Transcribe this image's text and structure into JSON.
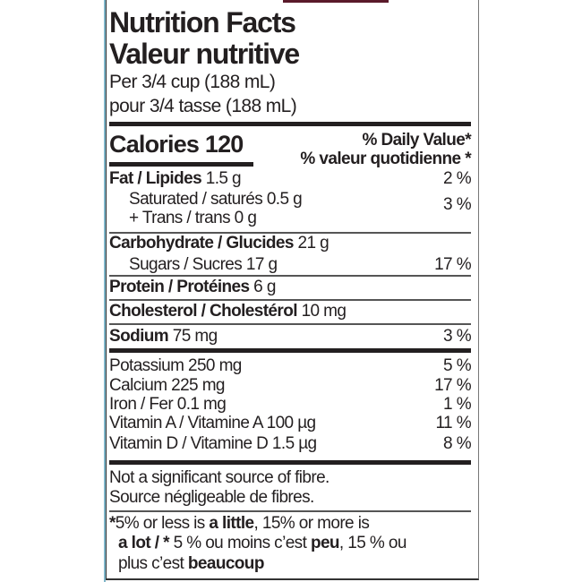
{
  "title_en": "Nutrition Facts",
  "title_fr": "Valeur nutritive",
  "serving_en": "Per 3/4 cup (188 mL)",
  "serving_fr": "pour 3/4 tasse (188 mL)",
  "calories": {
    "label": "Calories",
    "value": "120"
  },
  "dv_header_en": "% Daily Value",
  "dv_header_fr": "% valeur quotidienne",
  "asterisk": "*",
  "nutrients": [
    {
      "name": "Fat / Lipides",
      "amount": "1.5 g",
      "dv": "2 %"
    },
    {
      "name": "Saturated / saturés",
      "amount": "0.5 g",
      "dv": "3 %"
    },
    {
      "name": "+ Trans / trans",
      "amount": "0 g"
    },
    {
      "name": "Carbohydrate / Glucides",
      "amount": "21 g"
    },
    {
      "name": "Sugars / Sucres",
      "amount": "17 g",
      "dv": "17 %"
    },
    {
      "name": "Protein / Protéines",
      "amount": "6 g"
    },
    {
      "name": "Cholesterol / Cholestérol",
      "amount": "10 mg"
    },
    {
      "name": "Sodium",
      "amount": "75 mg",
      "dv": "3 %"
    }
  ],
  "micronutrients": [
    {
      "name": "Potassium",
      "amount": "250 mg",
      "dv": "5 %"
    },
    {
      "name": "Calcium",
      "amount": "225 mg",
      "dv": "17 %"
    },
    {
      "name": "Iron / Fer",
      "amount": "0.1 mg",
      "dv": "1 %"
    },
    {
      "name": "Vitamin A / Vitamine A",
      "amount": "100 µg",
      "dv": "11 %"
    },
    {
      "name": "Vitamin D / Vitamine D",
      "amount": "1.5 µg",
      "dv": "8 %"
    }
  ],
  "fibre_note_en": "Not a significant source of fibre.",
  "fibre_note_fr": "Source négligeable de fibres.",
  "footnote": {
    "p1": "5% or less is ",
    "b1": "a little",
    "p2": ", 15% or more is",
    "b2": "a lot / ",
    "p3": " 5 % ou moins c’est ",
    "b3": "peu",
    "p4": ", 15 % ou",
    "p5": "plus c’est ",
    "b4": "beaucoup"
  },
  "colors": {
    "ink": "#231f20",
    "left_edge": "#7fb6c9",
    "top_strip": "#5a1a2a"
  }
}
